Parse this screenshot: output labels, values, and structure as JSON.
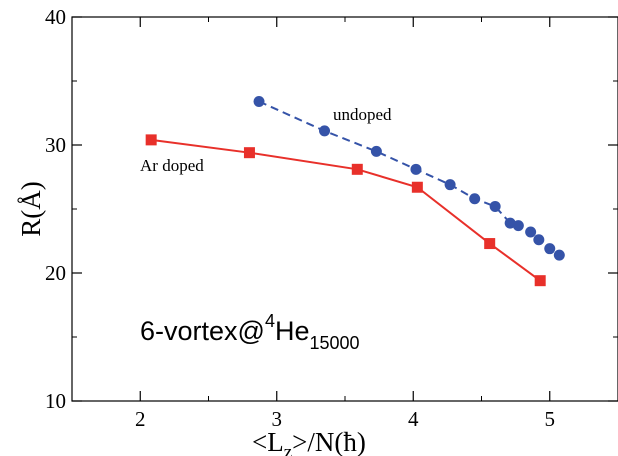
{
  "chart_data": {
    "type": "line",
    "xlabel": "<L",
    "xlabel_sub": "z",
    "xlabel_rest": ">/N(ħ)",
    "ylabel": "R(Å)",
    "xlim": [
      1.5,
      5.5
    ],
    "ylim": [
      10,
      40
    ],
    "x_ticks": [
      2,
      3,
      4,
      5
    ],
    "x_tick_labels": [
      "2",
      "3",
      "4",
      "5"
    ],
    "y_ticks": [
      10,
      20,
      30,
      40
    ],
    "y_tick_labels": [
      "10",
      "20",
      "30",
      "40"
    ],
    "grid": false,
    "legend": "none",
    "annotation": {
      "main": "6-vortex@",
      "sup": "4",
      "element": "He",
      "sub": "15000"
    },
    "series": [
      {
        "name": "Ar doped",
        "color": "#e8302a",
        "marker": "square",
        "line": "solid",
        "x": [
          2.08,
          2.8,
          3.59,
          4.03,
          4.56,
          4.93
        ],
        "y": [
          30.4,
          29.4,
          28.1,
          26.7,
          22.3,
          19.4
        ]
      },
      {
        "name": "undoped",
        "color": "#3553a8",
        "marker": "circle",
        "line": "dashed",
        "x": [
          2.87,
          3.35,
          3.73,
          4.02,
          4.27,
          4.45,
          4.6,
          4.71,
          4.77,
          4.86,
          4.92,
          5.0,
          5.07
        ],
        "y": [
          33.4,
          31.1,
          29.5,
          28.1,
          26.9,
          25.8,
          25.2,
          23.9,
          23.7,
          23.2,
          22.6,
          21.9,
          21.4
        ]
      }
    ]
  }
}
